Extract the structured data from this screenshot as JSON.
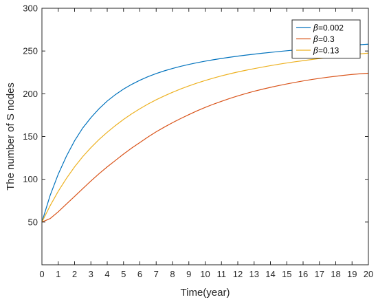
{
  "chart_data": {
    "type": "line",
    "xlabel": "Time(year)",
    "ylabel": "The number of S nodes",
    "xlim": [
      0,
      20
    ],
    "ylim": [
      0,
      300
    ],
    "xticks": [
      0,
      1,
      2,
      3,
      4,
      5,
      6,
      7,
      8,
      9,
      10,
      11,
      12,
      13,
      14,
      15,
      16,
      17,
      18,
      19,
      20
    ],
    "yticks": [
      50,
      100,
      150,
      200,
      250,
      300
    ],
    "grid": false,
    "legend_position": "top-right",
    "series": [
      {
        "name": "β=0.002",
        "color": "#0072BD",
        "x": [
          0,
          0.5,
          1,
          1.5,
          2,
          2.5,
          3,
          3.5,
          4,
          4.5,
          5,
          5.5,
          6,
          6.5,
          7,
          7.5,
          8,
          8.5,
          9,
          9.5,
          10,
          10.5,
          11,
          11.5,
          12,
          12.5,
          13,
          13.5,
          14,
          14.5,
          15,
          15.5,
          16,
          16.5,
          17,
          17.5,
          18,
          18.5,
          19,
          19.5,
          20
        ],
        "values": [
          50,
          81,
          106,
          127,
          145,
          160,
          172,
          182.5,
          191.5,
          199,
          205.5,
          211,
          215.8,
          220,
          223.6,
          226.8,
          229.6,
          232.1,
          234.3,
          236.3,
          238.1,
          239.8,
          241.3,
          242.7,
          244,
          245.2,
          246.3,
          247.4,
          248.4,
          249.4,
          250.3,
          251.2,
          252.1,
          252.9,
          253.7,
          254.5,
          255.3,
          256,
          256.7,
          257.4,
          258
        ]
      },
      {
        "name": "β=0.3",
        "color": "#D95319",
        "x": [
          0,
          0.5,
          1,
          1.5,
          2,
          2.5,
          3,
          3.5,
          4,
          4.5,
          5,
          5.5,
          6,
          6.5,
          7,
          7.5,
          8,
          8.5,
          9,
          9.5,
          10,
          10.5,
          11,
          11.5,
          12,
          12.5,
          13,
          13.5,
          14,
          14.5,
          15,
          15.5,
          16,
          16.5,
          17,
          17.5,
          18,
          18.5,
          19,
          19.5,
          20
        ],
        "values": [
          50,
          54,
          62,
          71,
          80,
          89,
          98,
          106.5,
          114.5,
          122,
          129.5,
          136.5,
          143,
          149.5,
          155.5,
          161,
          166.2,
          171,
          175.6,
          180,
          184,
          187.8,
          191.2,
          194.5,
          197.5,
          200.3,
          202.9,
          205.3,
          207.5,
          209.6,
          211.5,
          213.3,
          215,
          216.6,
          218,
          219.3,
          220.5,
          221.6,
          222.6,
          223.4,
          224
        ]
      },
      {
        "name": "β=0.13",
        "color": "#EDB120",
        "x": [
          0,
          0.5,
          1,
          1.5,
          2,
          2.5,
          3,
          3.5,
          4,
          4.5,
          5,
          5.5,
          6,
          6.5,
          7,
          7.5,
          8,
          8.5,
          9,
          9.5,
          10,
          10.5,
          11,
          11.5,
          12,
          12.5,
          13,
          13.5,
          14,
          14.5,
          15,
          15.5,
          16,
          16.5,
          17,
          17.5,
          18,
          18.5,
          19,
          19.5,
          20
        ],
        "values": [
          50,
          69,
          86,
          101,
          114.5,
          126.5,
          137,
          146.5,
          155,
          162.8,
          170,
          176.5,
          182.5,
          188,
          193,
          197.5,
          201.7,
          205.6,
          209.2,
          212.5,
          215.5,
          218.3,
          220.9,
          223.3,
          225.5,
          227.5,
          229.4,
          231.2,
          232.9,
          234.5,
          236,
          237.4,
          238.7,
          240,
          241.2,
          242.4,
          243.5,
          244.6,
          245.6,
          246.6,
          247.5
        ]
      }
    ]
  }
}
